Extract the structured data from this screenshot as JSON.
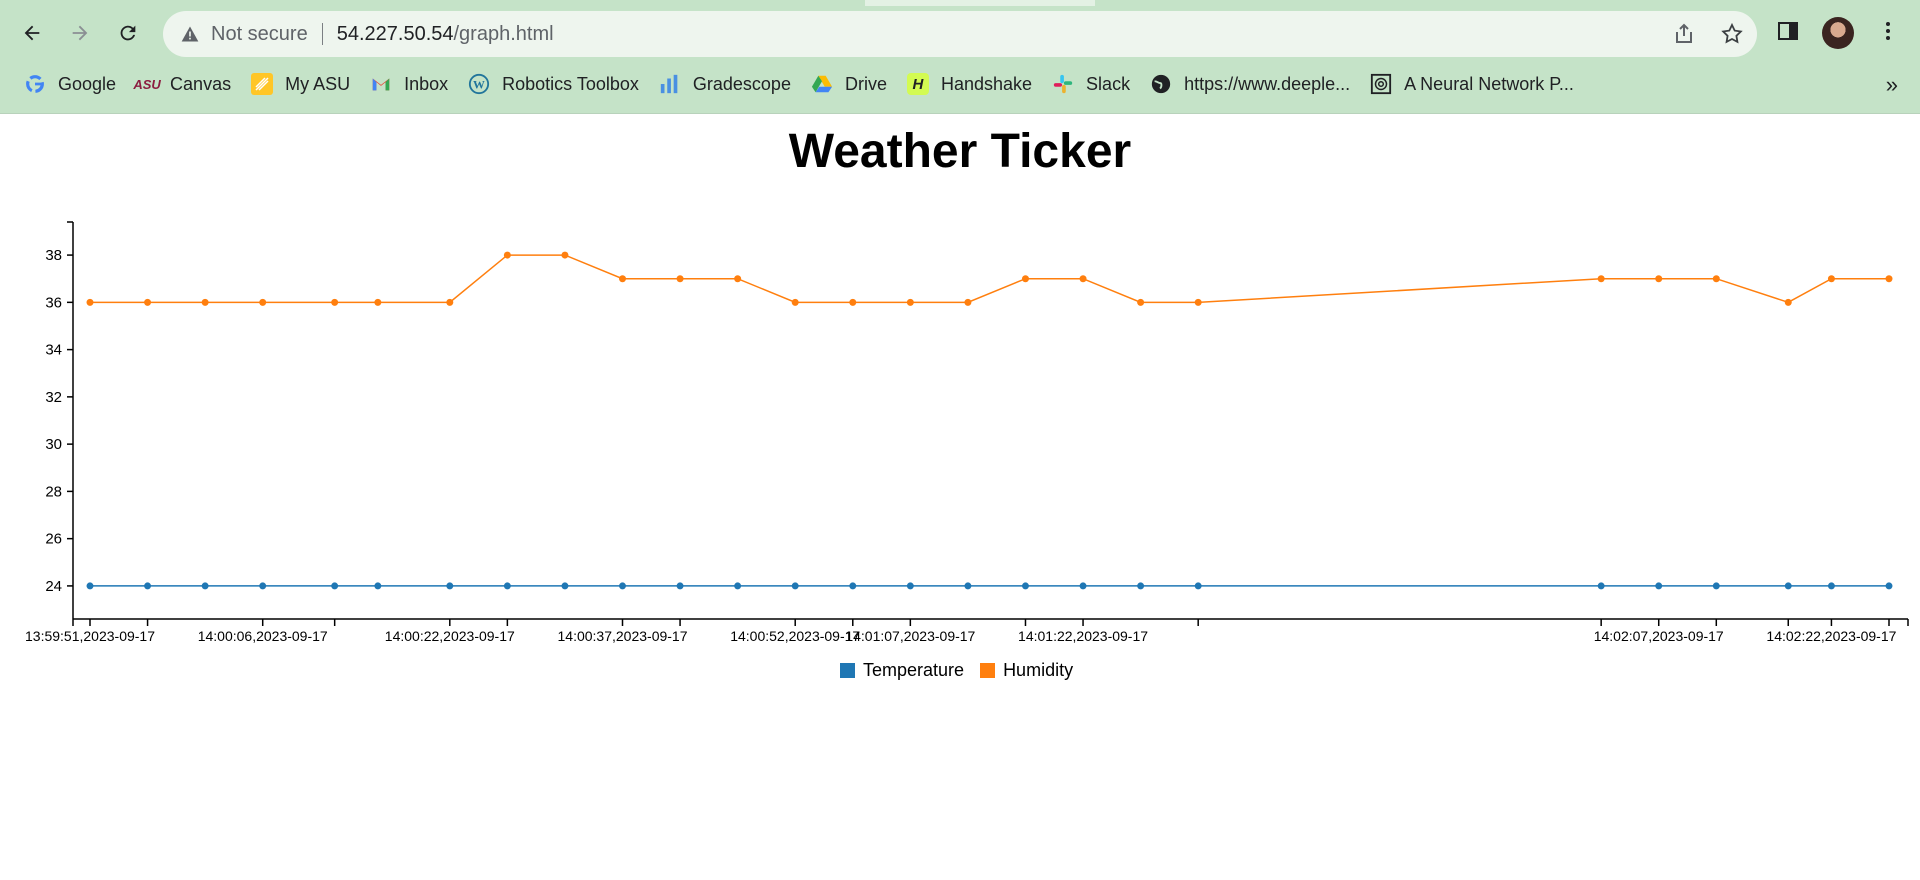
{
  "browser": {
    "security_text": "Not secure",
    "url_host": "54.227.50.54",
    "url_path": "/graph.html",
    "bookmarks": [
      {
        "label": "Google",
        "icon": "google-icon"
      },
      {
        "label": "Canvas",
        "icon": "asu-icon"
      },
      {
        "label": "My ASU",
        "icon": "myasu-icon"
      },
      {
        "label": "Inbox",
        "icon": "gmail-icon"
      },
      {
        "label": "Robotics Toolbox",
        "icon": "wordpress-icon"
      },
      {
        "label": "Gradescope",
        "icon": "gradescope-icon"
      },
      {
        "label": "Drive",
        "icon": "drive-icon"
      },
      {
        "label": "Handshake",
        "icon": "handshake-icon"
      },
      {
        "label": "Slack",
        "icon": "slack-icon"
      },
      {
        "label": "https://www.deeple...",
        "icon": "globe-icon"
      },
      {
        "label": "A Neural Network P...",
        "icon": "neural-icon"
      }
    ],
    "more_label": "»"
  },
  "page": {
    "title": "Weather Ticker"
  },
  "colors": {
    "temperature": "#1f77b4",
    "humidity": "#ff7f0e"
  },
  "chart_data": {
    "type": "line",
    "title": "",
    "xlabel": "",
    "ylabel": "",
    "ylim": [
      22.6,
      39.4
    ],
    "yticks": [
      24,
      26,
      28,
      30,
      32,
      34,
      36,
      38
    ],
    "x_seconds": [
      0,
      4,
      8,
      12,
      17,
      20,
      25,
      29,
      33,
      37,
      41,
      45,
      49,
      53,
      57,
      61,
      65,
      69,
      73,
      77,
      105,
      109,
      113,
      118,
      121,
      125
    ],
    "tick_labels": [
      {
        "s": 0,
        "label": "13:59:51,2023-09-17"
      },
      {
        "s": 4,
        "label": ""
      },
      {
        "s": 12,
        "label": "14:00:06,2023-09-17"
      },
      {
        "s": 17,
        "label": ""
      },
      {
        "s": 25,
        "label": "14:00:22,2023-09-17"
      },
      {
        "s": 29,
        "label": ""
      },
      {
        "s": 37,
        "label": "14:00:37,2023-09-17"
      },
      {
        "s": 41,
        "label": ""
      },
      {
        "s": 49,
        "label": "14:00:52,2023-09-17"
      },
      {
        "s": 53,
        "label": ""
      },
      {
        "s": 57,
        "label": "14:01:07,2023-09-17"
      },
      {
        "s": 65,
        "label": ""
      },
      {
        "s": 69,
        "label": "14:01:22,2023-09-17"
      },
      {
        "s": 77,
        "label": ""
      },
      {
        "s": 105,
        "label": ""
      },
      {
        "s": 109,
        "label": "14:02:07,2023-09-17"
      },
      {
        "s": 113,
        "label": ""
      },
      {
        "s": 118,
        "label": ""
      },
      {
        "s": 121,
        "label": "14:02:22,2023-09-17"
      },
      {
        "s": 125,
        "label": ""
      }
    ],
    "series": [
      {
        "name": "Temperature",
        "values": [
          24,
          24,
          24,
          24,
          24,
          24,
          24,
          24,
          24,
          24,
          24,
          24,
          24,
          24,
          24,
          24,
          24,
          24,
          24,
          24,
          24,
          24,
          24,
          24,
          24,
          24
        ]
      },
      {
        "name": "Humidity",
        "values": [
          36,
          36,
          36,
          36,
          36,
          36,
          36,
          38,
          38,
          37,
          37,
          37,
          36,
          36,
          36,
          36,
          37,
          37,
          36,
          36,
          37,
          37,
          37,
          36,
          37,
          37
        ]
      }
    ],
    "legend": [
      "Temperature",
      "Humidity"
    ]
  }
}
